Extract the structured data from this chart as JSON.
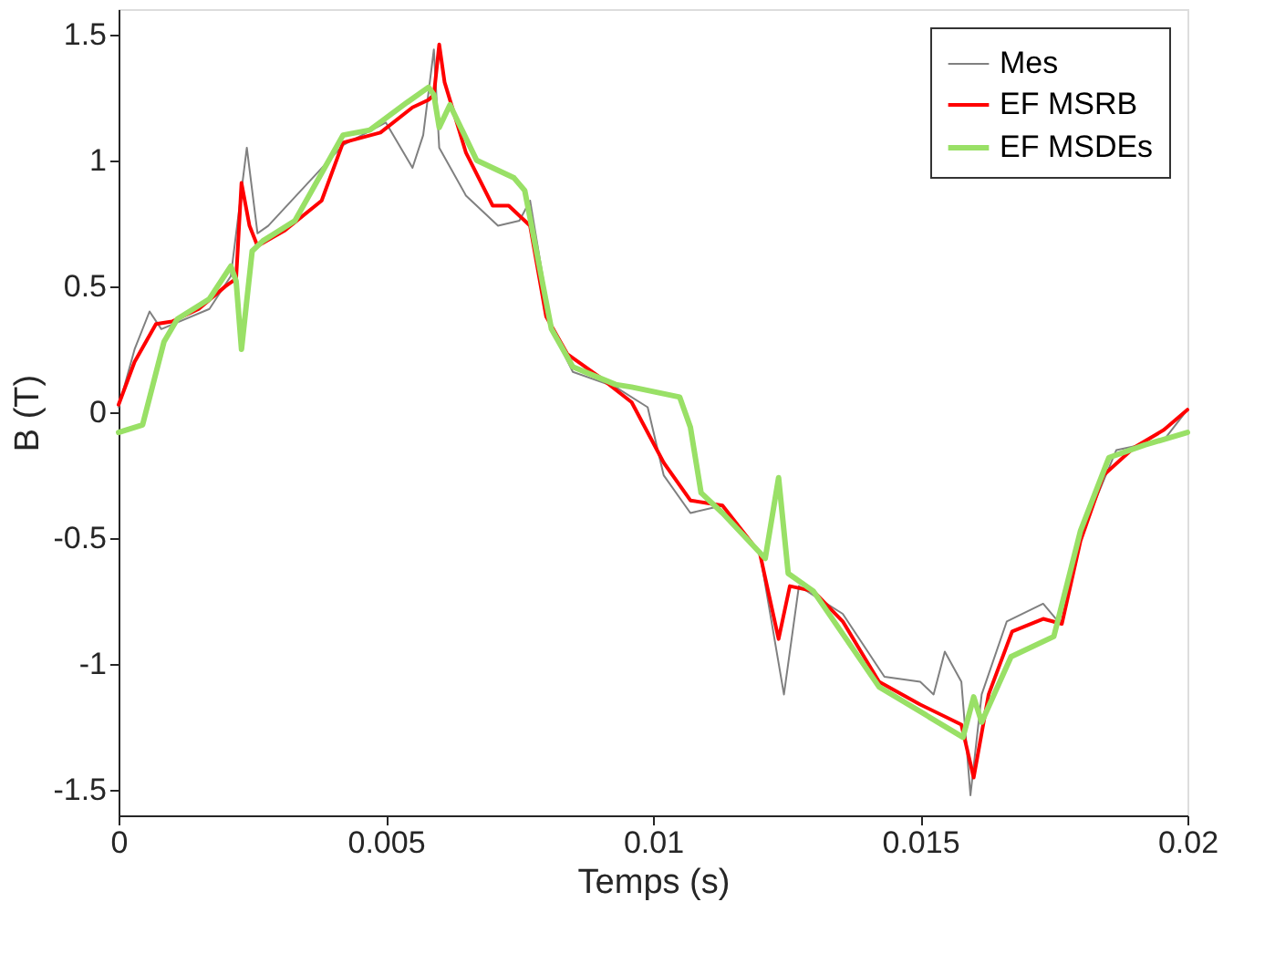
{
  "chart_data": {
    "type": "line",
    "xlabel": "Temps (s)",
    "ylabel": "B (T)",
    "xlim": [
      0,
      0.02
    ],
    "xticks": [
      0,
      0.005,
      0.01,
      0.015,
      0.02
    ],
    "ylim": [
      -1.6,
      1.6
    ],
    "yticks": [
      -1.5,
      -1,
      -0.5,
      0,
      0.5,
      1,
      1.5
    ],
    "grid": false,
    "legend": "top right",
    "line_style": "solid",
    "marker": "none",
    "series": [
      {
        "name": "Mes",
        "color": "#808080",
        "x": [
          0,
          0.0003,
          0.00058,
          0.0008,
          0.0017,
          0.0021,
          0.0024,
          0.0026,
          0.0028,
          0.0042,
          0.005,
          0.0055,
          0.0057,
          0.0059,
          0.006,
          0.0065,
          0.0071,
          0.0075,
          0.0077,
          0.0081,
          0.0085,
          0.0093,
          0.0099,
          0.0102,
          0.0107,
          0.0113,
          0.012,
          0.01245,
          0.01273,
          0.01355,
          0.01433,
          0.015,
          0.01525,
          0.01546,
          0.01577,
          0.01594,
          0.01615,
          0.01662,
          0.0173,
          0.01758,
          0.018,
          0.01867,
          0.01956,
          0.02
        ],
        "values": [
          0.02,
          0.25,
          0.4,
          0.33,
          0.41,
          0.54,
          1.05,
          0.71,
          0.74,
          1.06,
          1.15,
          0.97,
          1.1,
          1.44,
          1.05,
          0.86,
          0.74,
          0.76,
          0.84,
          0.33,
          0.16,
          0.1,
          0.02,
          -0.25,
          -0.4,
          -0.37,
          -0.56,
          -1.12,
          -0.69,
          -0.8,
          -1.05,
          -1.07,
          -1.12,
          -0.95,
          -1.07,
          -1.52,
          -1.12,
          -0.83,
          -0.76,
          -0.83,
          -0.49,
          -0.15,
          -0.11,
          0.01
        ]
      },
      {
        "name": "EF MSRB",
        "color": "#ff0000",
        "x": [
          0,
          0.0003,
          0.0007,
          0.001,
          0.0015,
          0.002,
          0.0022,
          0.0023,
          0.00245,
          0.0026,
          0.0031,
          0.0038,
          0.0042,
          0.0049,
          0.0055,
          0.0058,
          0.0059,
          0.006,
          0.0061,
          0.0065,
          0.007,
          0.0073,
          0.0077,
          0.008,
          0.0084,
          0.009,
          0.0096,
          0.0102,
          0.0107,
          0.0113,
          0.012,
          0.01235,
          0.01256,
          0.013,
          0.01355,
          0.01423,
          0.015,
          0.01577,
          0.016,
          0.01628,
          0.01672,
          0.0173,
          0.01765,
          0.018,
          0.01843,
          0.019,
          0.01956,
          0.02
        ],
        "values": [
          0.03,
          0.2,
          0.35,
          0.36,
          0.41,
          0.5,
          0.53,
          0.91,
          0.74,
          0.66,
          0.72,
          0.84,
          1.07,
          1.11,
          1.21,
          1.24,
          1.26,
          1.46,
          1.31,
          1.03,
          0.82,
          0.82,
          0.74,
          0.38,
          0.23,
          0.14,
          0.04,
          -0.2,
          -0.35,
          -0.37,
          -0.56,
          -0.9,
          -0.69,
          -0.71,
          -0.83,
          -1.07,
          -1.16,
          -1.24,
          -1.45,
          -1.12,
          -0.87,
          -0.82,
          -0.84,
          -0.51,
          -0.25,
          -0.14,
          -0.07,
          0.01
        ]
      },
      {
        "name": "EF MSDEs",
        "color": "#99e066",
        "x": [
          0,
          0.00045,
          0.00085,
          0.0011,
          0.0017,
          0.0021,
          0.0022,
          0.0023,
          0.0025,
          0.0027,
          0.0033,
          0.0042,
          0.0047,
          0.0054,
          0.0058,
          0.0059,
          0.006,
          0.0062,
          0.0067,
          0.0074,
          0.0076,
          0.0081,
          0.0085,
          0.0093,
          0.0096,
          0.0105,
          0.0107,
          0.0109,
          0.0113,
          0.0121,
          0.01235,
          0.01253,
          0.013,
          0.01423,
          0.0158,
          0.016,
          0.01615,
          0.0167,
          0.0175,
          0.018,
          0.01853,
          0.0192,
          0.02
        ],
        "values": [
          -0.08,
          -0.05,
          0.28,
          0.37,
          0.45,
          0.58,
          0.52,
          0.25,
          0.64,
          0.68,
          0.76,
          1.1,
          1.12,
          1.23,
          1.29,
          1.26,
          1.13,
          1.22,
          1.0,
          0.93,
          0.88,
          0.33,
          0.18,
          0.11,
          0.1,
          0.06,
          -0.06,
          -0.32,
          -0.4,
          -0.58,
          -0.26,
          -0.64,
          -0.71,
          -1.09,
          -1.29,
          -1.13,
          -1.23,
          -0.97,
          -0.89,
          -0.47,
          -0.18,
          -0.13,
          -0.08
        ]
      }
    ]
  }
}
